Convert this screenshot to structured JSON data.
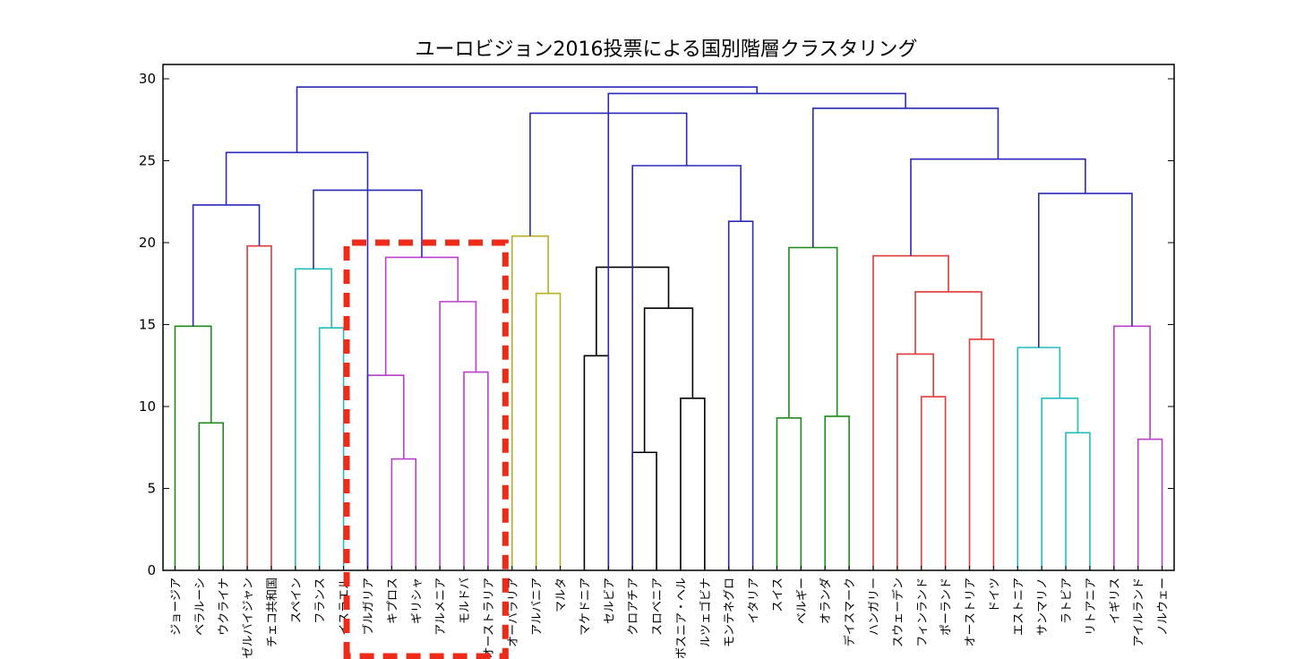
{
  "chart_data": {
    "type": "dendrogram",
    "title": "ユーロビジョン2016投票による国別階層クラスタリング",
    "ylim": [
      0,
      30
    ],
    "yticks": [
      0,
      5,
      10,
      15,
      20,
      25,
      30
    ],
    "leaves": [
      "ジョージア",
      "ベラルーシ",
      "ウクライナ",
      "アゼルバイジャン",
      "チェコ共和国",
      "スペイン",
      "フランス",
      "イスラエル",
      "ブルガリア",
      "キプロス",
      "ギリシャ",
      "アルメニア",
      "モルドバ",
      "オーストラリア",
      "オーバラリア",
      "アルバニア",
      "マルタ",
      "マケドニア",
      "セルビア",
      "クロアチア",
      "スロベニア",
      "ボスニア・ヘル",
      "ルツェゴビナ",
      "モンテネグロ",
      "イタリア",
      "スイス",
      "ベルギー",
      "オランダ",
      "デイスマーク",
      "ハンガリー",
      "スウェーデン",
      "フィンランド",
      "ポーランド",
      "オーストリア",
      "ドイツ",
      "エストニア",
      "サンマリノ",
      "ラトビア",
      "リトアニア",
      "イギリス",
      "アイルランド",
      "ノルウェー"
    ],
    "colors": {
      "blue": "#2a2ab8",
      "green": "#1f8a1f",
      "red": "#e03a3a",
      "cyan": "#22bcbc",
      "magenta": "#bb3fcc",
      "yellow": "#b8b020",
      "black": "#000000",
      "highlight": "#ee2a18"
    },
    "links": [
      {
        "a": 1,
        "b": 2,
        "h": 9.0,
        "c": "green"
      },
      {
        "a": 0,
        "b": 1.5,
        "h": 14.9,
        "c": "green"
      },
      {
        "a": 3,
        "b": 4,
        "h": 19.8,
        "c": "red"
      },
      {
        "a": 0.75,
        "b": 3.5,
        "h": 22.3,
        "c": "blue"
      },
      {
        "a": 6,
        "b": 7,
        "h": 14.8,
        "c": "cyan"
      },
      {
        "a": 5,
        "b": 6.5,
        "h": 18.4,
        "c": "cyan"
      },
      {
        "a": 9,
        "b": 10,
        "h": 6.8,
        "c": "magenta"
      },
      {
        "a": 8,
        "b": 9.5,
        "h": 11.9,
        "c": "magenta"
      },
      {
        "a": 12,
        "b": 13,
        "h": 12.1,
        "c": "magenta"
      },
      {
        "a": 11,
        "b": 12.5,
        "h": 16.4,
        "c": "magenta"
      },
      {
        "a": 8.75,
        "b": 11.75,
        "h": 19.1,
        "c": "magenta"
      },
      {
        "a": 5.75,
        "b": 10.25,
        "h": 23.2,
        "c": "blue"
      },
      {
        "a": 2.125,
        "b": 8.0,
        "h": 25.5,
        "c": "blue"
      },
      {
        "a": 15,
        "b": 16,
        "h": 16.9,
        "c": "yellow"
      },
      {
        "a": 14,
        "b": 15.5,
        "h": 20.4,
        "c": "yellow"
      },
      {
        "a": 17,
        "b": 18,
        "h": 13.1,
        "c": "black"
      },
      {
        "a": 19,
        "b": 20,
        "h": 7.2,
        "c": "black"
      },
      {
        "a": 21,
        "b": 22,
        "h": 10.5,
        "c": "black"
      },
      {
        "a": 19.5,
        "b": 21.5,
        "h": 16.0,
        "c": "black"
      },
      {
        "a": 17.5,
        "b": 20.5,
        "h": 18.5,
        "c": "black"
      },
      {
        "a": 23,
        "b": 24,
        "h": 21.3,
        "c": "blue"
      },
      {
        "a": 19.0,
        "b": 23.5,
        "h": 24.7,
        "c": "blue"
      },
      {
        "a": 14.75,
        "b": 21.25,
        "h": 27.9,
        "c": "blue"
      },
      {
        "a": 25,
        "b": 26,
        "h": 9.3,
        "c": "green"
      },
      {
        "a": 27,
        "b": 28,
        "h": 9.4,
        "c": "green"
      },
      {
        "a": 25.5,
        "b": 27.5,
        "h": 19.7,
        "c": "green"
      },
      {
        "a": 31,
        "b": 32,
        "h": 10.6,
        "c": "red"
      },
      {
        "a": 30,
        "b": 31.5,
        "h": 13.2,
        "c": "red"
      },
      {
        "a": 33,
        "b": 34,
        "h": 14.1,
        "c": "red"
      },
      {
        "a": 30.75,
        "b": 33.5,
        "h": 17.0,
        "c": "red"
      },
      {
        "a": 29,
        "b": 32.125,
        "h": 19.2,
        "c": "red"
      },
      {
        "a": 37,
        "b": 38,
        "h": 8.4,
        "c": "cyan"
      },
      {
        "a": 36,
        "b": 37.5,
        "h": 10.5,
        "c": "cyan"
      },
      {
        "a": 35,
        "b": 36.75,
        "h": 13.6,
        "c": "cyan"
      },
      {
        "a": 40,
        "b": 41,
        "h": 8.0,
        "c": "magenta"
      },
      {
        "a": 39,
        "b": 40.5,
        "h": 14.9,
        "c": "magenta"
      },
      {
        "a": 35.875,
        "b": 39.75,
        "h": 23.0,
        "c": "blue"
      },
      {
        "a": 30.5625,
        "b": 37.8125,
        "h": 25.1,
        "c": "blue"
      },
      {
        "a": 26.5,
        "b": 34.1875,
        "h": 28.2,
        "c": "blue"
      },
      {
        "a": 18.0,
        "b": 30.34375,
        "h": 29.1,
        "c": "blue"
      },
      {
        "a": 5.0625,
        "b": 24.171875,
        "h": 29.5,
        "c": "blue"
      }
    ],
    "highlight": {
      "from_leaf": 7.5,
      "to_leaf": 13.5,
      "y_top": 20.0,
      "style": "dashed"
    }
  }
}
